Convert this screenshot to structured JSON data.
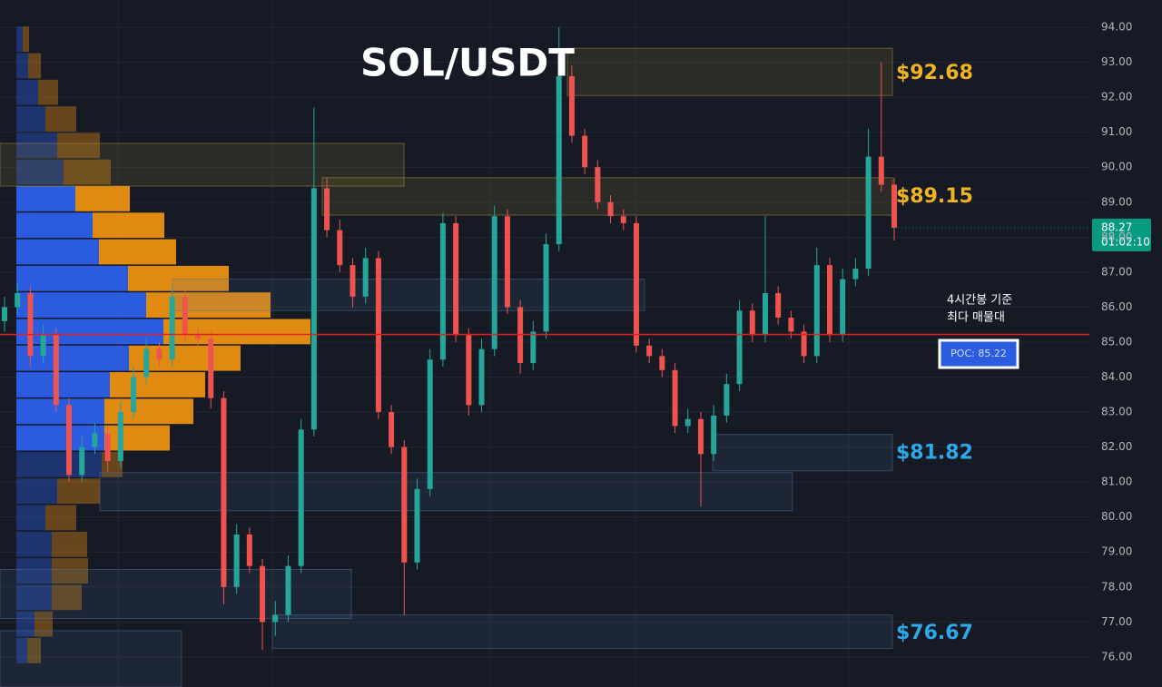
{
  "chart_data": {
    "type": "candlestick",
    "title": "SOL/USDT",
    "ylim": [
      75.14,
      94.78
    ],
    "yticks": [
      {
        "value": 76,
        "label": "76.00"
      },
      {
        "value": 77,
        "label": "77.00"
      },
      {
        "value": 78,
        "label": "78.00"
      },
      {
        "value": 79,
        "label": "79.00"
      },
      {
        "value": 80,
        "label": "80.00"
      },
      {
        "value": 81,
        "label": "81.00"
      },
      {
        "value": 82,
        "label": "82.00"
      },
      {
        "value": 83,
        "label": "83.00"
      },
      {
        "value": 84,
        "label": "84.00"
      },
      {
        "value": 85,
        "label": "85.00"
      },
      {
        "value": 86,
        "label": "86.00"
      },
      {
        "value": 87,
        "label": "87.00"
      },
      {
        "value": 88,
        "label": "88.00"
      },
      {
        "value": 89,
        "label": "89.00"
      },
      {
        "value": 90,
        "label": "90.00"
      },
      {
        "value": 91,
        "label": "91.00"
      },
      {
        "value": 92,
        "label": "92.00"
      },
      {
        "value": 93,
        "label": "93.00"
      },
      {
        "value": 94,
        "label": "94.00"
      }
    ],
    "grid": true,
    "up_color": "#26a69a",
    "down_color": "#ef5350",
    "open": [
      85.6,
      86.0,
      86.4,
      84.6,
      85.2,
      83.2,
      81.2,
      82.0,
      82.4,
      81.6,
      83.0,
      84.0,
      84.8,
      84.5,
      86.3,
      85.2,
      85.1,
      83.4,
      78.0,
      79.5,
      78.6,
      77.0,
      77.2,
      78.6,
      82.5,
      89.4,
      88.2,
      87.2,
      86.3,
      87.4,
      83.0,
      82.0,
      78.7,
      80.8,
      84.5,
      88.4,
      85.2,
      83.2,
      84.8,
      88.6,
      86.0,
      84.4,
      85.3,
      87.8,
      92.6,
      90.9,
      90.0,
      89.0,
      88.6,
      88.4,
      84.9,
      84.6,
      84.2,
      82.6,
      82.8,
      81.8,
      82.9,
      83.8,
      85.9,
      85.2,
      86.4,
      85.7,
      85.3,
      84.6,
      87.2,
      85.2,
      86.8,
      87.1,
      90.3,
      89.5
    ],
    "high": [
      86.3,
      86.7,
      86.6,
      85.5,
      85.4,
      83.4,
      82.3,
      82.7,
      82.6,
      83.3,
      84.3,
      85.1,
      85.0,
      86.6,
      86.5,
      85.4,
      85.3,
      83.6,
      79.8,
      79.7,
      78.8,
      77.6,
      78.9,
      82.8,
      91.7,
      89.7,
      88.5,
      87.4,
      87.7,
      87.6,
      83.2,
      82.2,
      81.1,
      84.8,
      88.7,
      88.6,
      85.4,
      85.1,
      88.9,
      88.8,
      86.2,
      85.6,
      88.1,
      94.0,
      92.9,
      91.1,
      90.2,
      89.2,
      88.8,
      88.6,
      85.1,
      84.8,
      84.4,
      83.1,
      83.0,
      83.2,
      84.1,
      86.2,
      86.1,
      88.6,
      86.6,
      85.9,
      85.5,
      87.7,
      87.4,
      87.1,
      87.4,
      91.1,
      93.0,
      89.7
    ],
    "low": [
      85.3,
      85.8,
      84.3,
      84.4,
      83.0,
      81.0,
      81.0,
      81.8,
      81.3,
      81.4,
      82.8,
      83.8,
      84.3,
      84.3,
      85.0,
      84.9,
      83.1,
      77.5,
      77.8,
      78.4,
      76.2,
      76.6,
      77.0,
      78.4,
      82.3,
      88.0,
      87.0,
      86.0,
      86.1,
      82.8,
      81.8,
      77.2,
      78.5,
      80.6,
      84.3,
      85.0,
      82.9,
      83.0,
      84.6,
      85.8,
      84.1,
      84.2,
      85.1,
      87.6,
      90.7,
      89.8,
      88.8,
      88.4,
      88.2,
      84.7,
      84.4,
      84.0,
      82.4,
      82.4,
      80.3,
      81.6,
      82.7,
      83.6,
      85.0,
      85.0,
      85.5,
      85.1,
      84.4,
      84.4,
      85.0,
      85.0,
      86.6,
      86.9,
      89.3,
      87.9
    ],
    "close": [
      86.0,
      86.4,
      84.6,
      85.2,
      83.2,
      81.2,
      82.0,
      82.4,
      81.6,
      83.0,
      84.0,
      84.8,
      84.5,
      86.3,
      85.2,
      85.1,
      83.4,
      78.0,
      79.5,
      78.6,
      77.0,
      77.2,
      78.6,
      82.5,
      89.4,
      88.2,
      87.2,
      86.3,
      87.4,
      83.0,
      82.0,
      78.7,
      80.8,
      84.5,
      88.4,
      85.2,
      83.2,
      84.8,
      88.6,
      86.0,
      84.4,
      85.3,
      87.8,
      92.6,
      90.9,
      90.0,
      89.0,
      88.6,
      88.4,
      84.9,
      84.6,
      84.2,
      82.6,
      82.8,
      81.8,
      82.9,
      83.8,
      85.9,
      85.2,
      86.4,
      85.7,
      85.3,
      84.6,
      87.2,
      85.2,
      86.8,
      87.1,
      90.3,
      89.5,
      88.27
    ],
    "volume_profile": {
      "price_levels": [
        93.66,
        92.9,
        92.14,
        91.38,
        90.62,
        89.86,
        89.1,
        88.34,
        87.58,
        86.82,
        86.06,
        85.3,
        84.54,
        83.78,
        83.02,
        82.26,
        81.5,
        80.74,
        79.98,
        79.22,
        78.46,
        77.7,
        76.94,
        76.18
      ],
      "buy": [
        7,
        13,
        24,
        32,
        45,
        52,
        65,
        84,
        91,
        123,
        143,
        162,
        124,
        103,
        97,
        97,
        94,
        45,
        32,
        39,
        39,
        39,
        20,
        12
      ],
      "sell": [
        7,
        14,
        22,
        34,
        47,
        52,
        60,
        79,
        85,
        111,
        137,
        162,
        123,
        105,
        98,
        72,
        23,
        47,
        34,
        39,
        40,
        33,
        20,
        15
      ],
      "buy_color": "#2b5ce0",
      "sell_color": "#e08a12",
      "value_area": [
        82.0,
        89.5
      ]
    },
    "zones": [
      {
        "low": 92.05,
        "high": 93.4,
        "color": "#b4963c"
      },
      {
        "low": 89.46,
        "high": 90.68,
        "color": "#b4963c"
      },
      {
        "low": 88.63,
        "high": 89.7,
        "color": "#b4963c"
      },
      {
        "low": 85.9,
        "high": 86.8,
        "color": "#50709a"
      },
      {
        "low": 81.32,
        "high": 82.36,
        "color": "#50709a"
      },
      {
        "low": 80.18,
        "high": 81.27,
        "color": "#50709a"
      },
      {
        "low": 77.1,
        "high": 78.5,
        "color": "#50709a"
      },
      {
        "low": 76.24,
        "high": 77.2,
        "color": "#50709a"
      },
      {
        "low": 75.14,
        "high": 76.75,
        "color": "#50709a"
      }
    ],
    "levels": [
      {
        "value": 92.68,
        "label": "$92.68",
        "color": "#f0b323"
      },
      {
        "value": 89.15,
        "label": "$89.15",
        "color": "#f0b323"
      },
      {
        "value": 81.82,
        "label": "$81.82",
        "color": "#2ea8e6"
      },
      {
        "value": 76.67,
        "label": "$76.67",
        "color": "#2ea8e6"
      }
    ],
    "poc": {
      "value": 85.22,
      "label": "POC: 85.22",
      "color": "#e0201e"
    },
    "annotation": [
      "4시간봉 기준",
      "최다 매물대"
    ],
    "current_price": {
      "value": 88.27,
      "countdown": "01:02:10",
      "color": "#089981"
    }
  }
}
